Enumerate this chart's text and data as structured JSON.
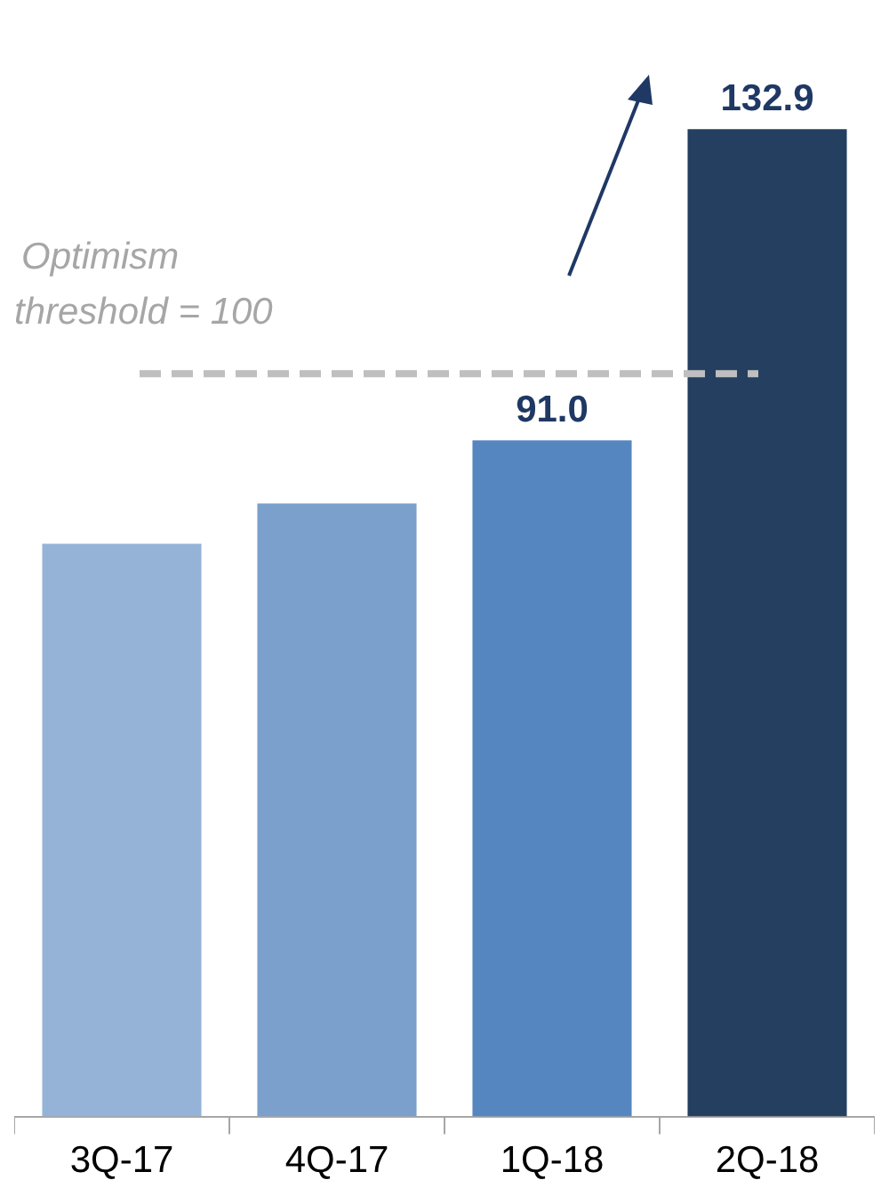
{
  "chart_data": {
    "type": "bar",
    "categories": [
      "3Q-17",
      "4Q-17",
      "1Q-18",
      "2Q-18"
    ],
    "values": [
      77.1,
      82.5,
      91.0,
      132.9
    ],
    "colors": [
      "#95b3d7",
      "#7aa0cb",
      "#5686c0",
      "#243f60"
    ],
    "value_labels": [
      null,
      null,
      "91.0",
      "132.9"
    ],
    "ref_lines": [
      {
        "axis": "y",
        "value": 100,
        "label": "Optimism threshold = 100",
        "color": "#bfbfbf",
        "line_style": "dashed"
      }
    ],
    "grid": false,
    "legend": false
  }
}
